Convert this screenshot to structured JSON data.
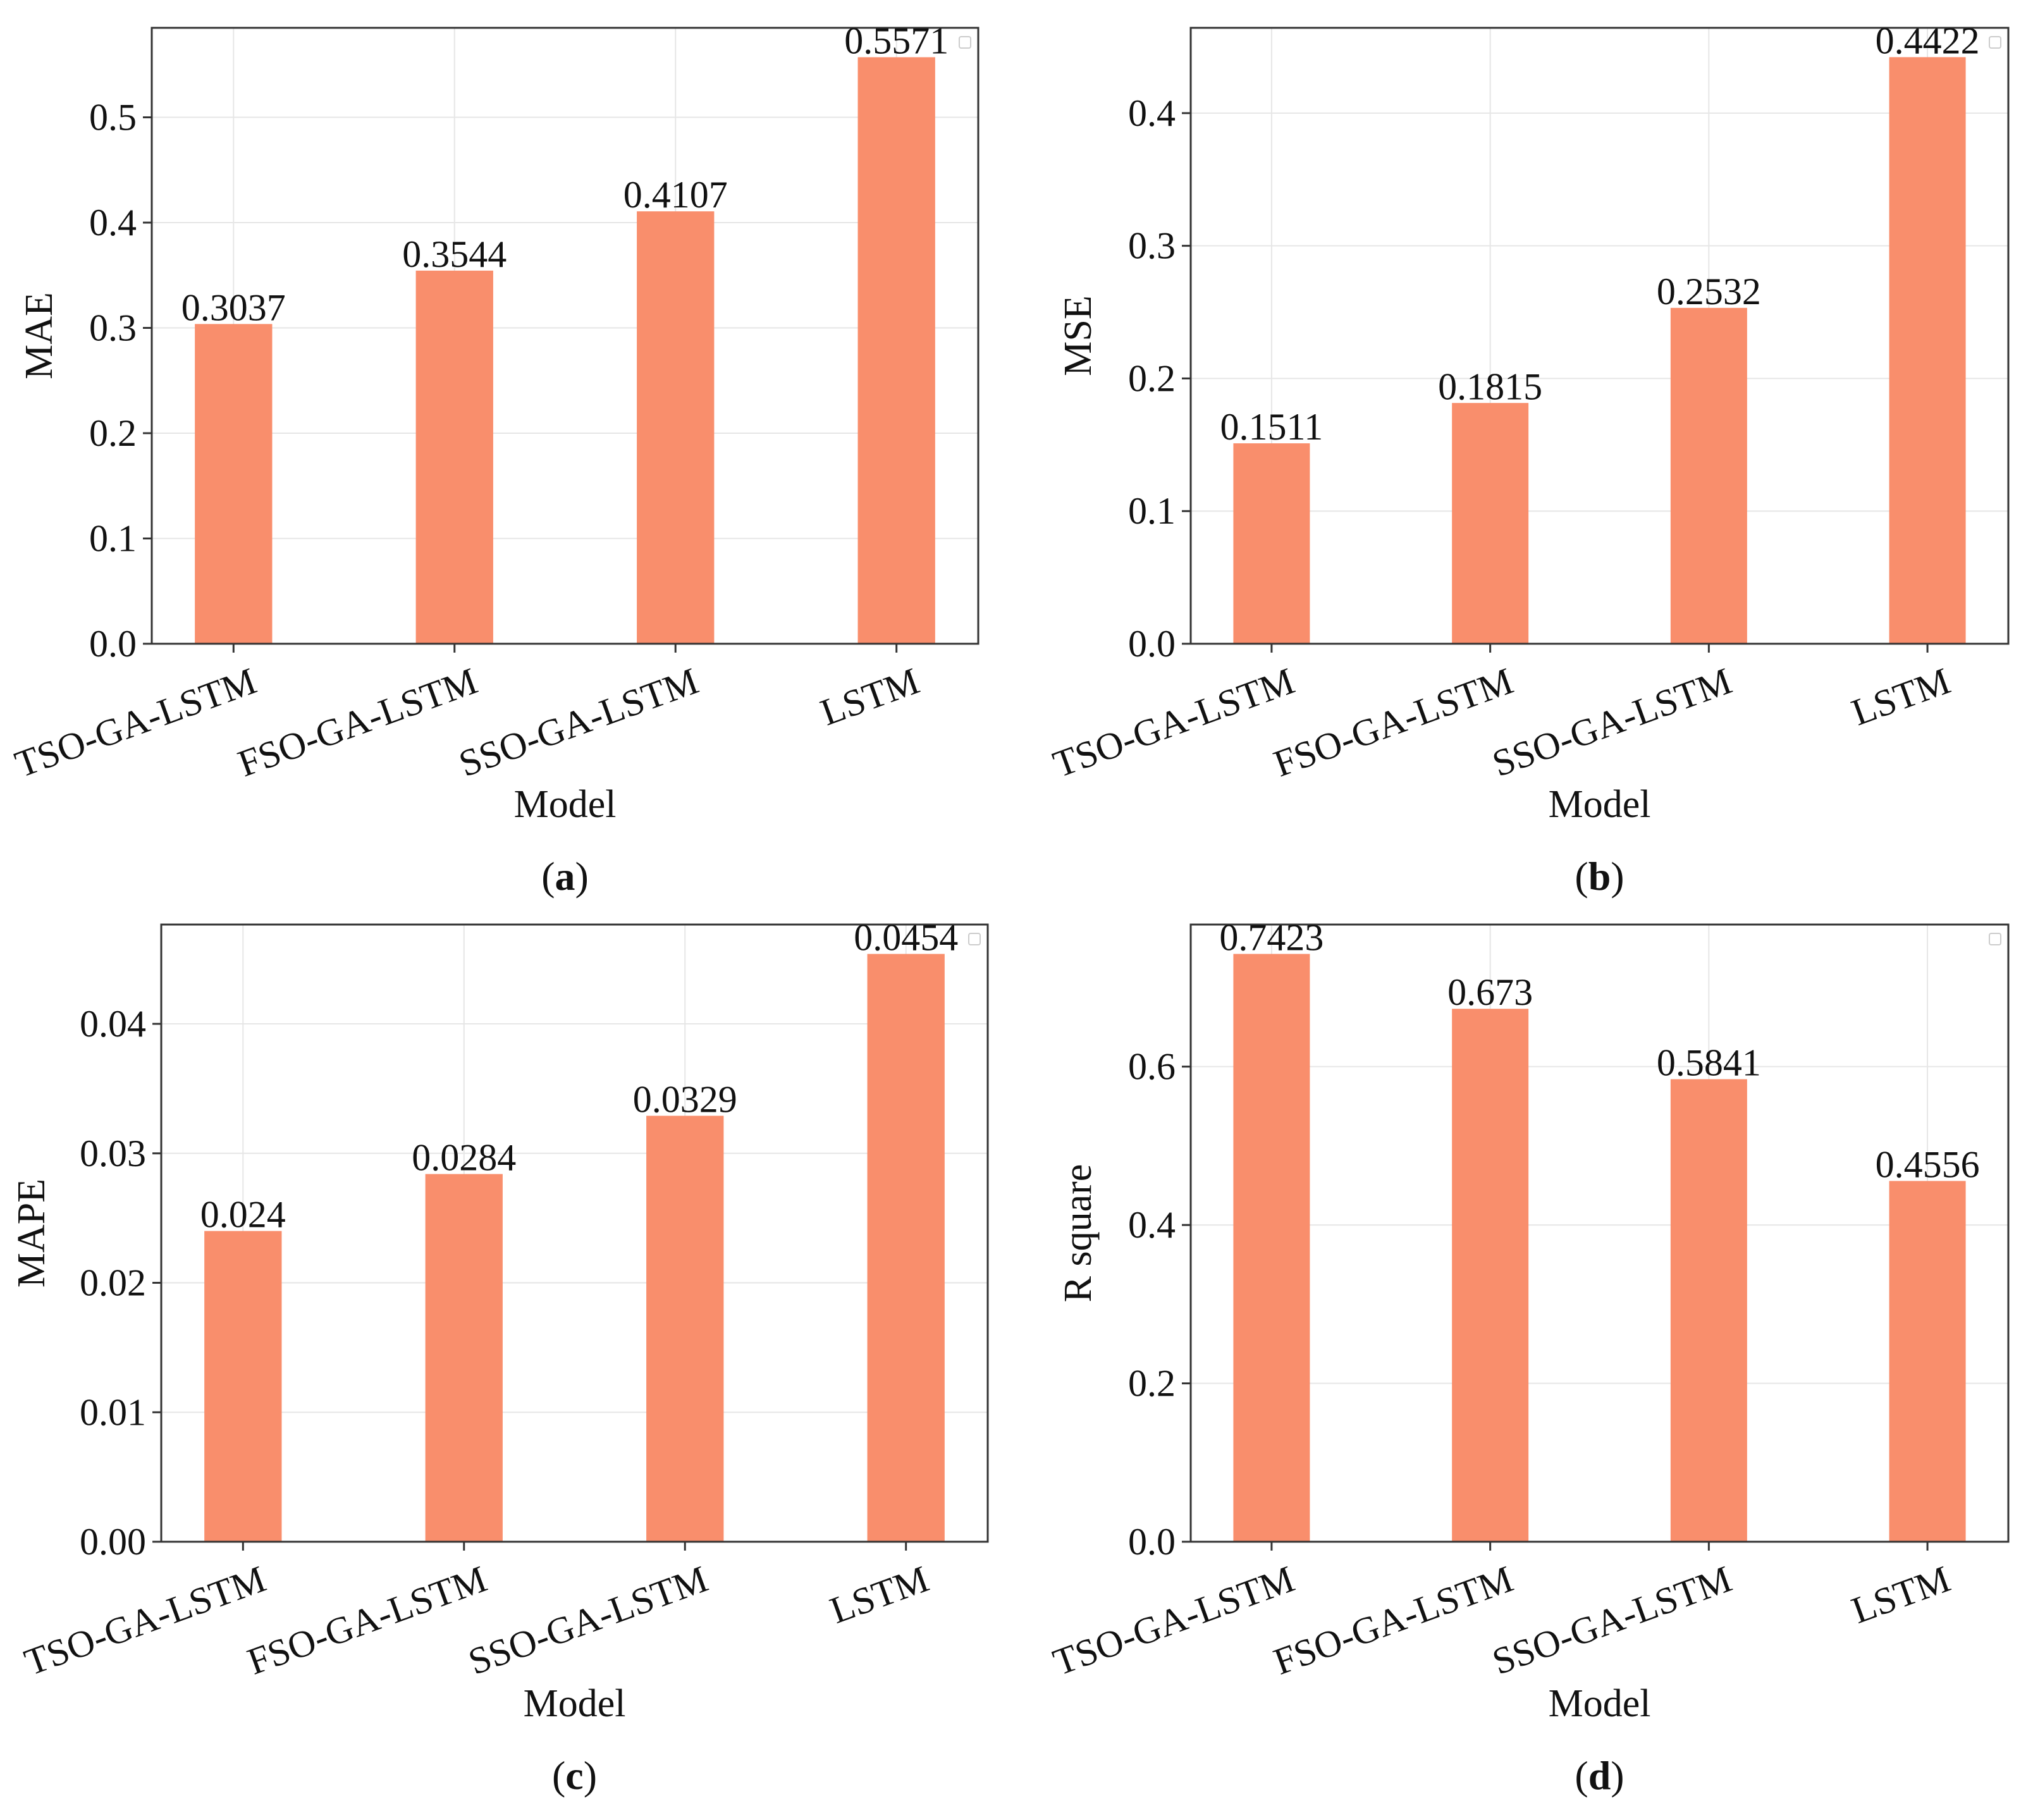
{
  "figure": {
    "bar_color": "#f98e6c",
    "grid_color": "#e6e6e6",
    "axis_color": "#333333"
  },
  "chart_data": [
    {
      "id": "a",
      "type": "bar",
      "panel_label": {
        "open": "(",
        "letter": "a",
        "close": ")"
      },
      "categories": [
        "TSO-GA-LSTM",
        "FSO-GA-LSTM",
        "SSO-GA-LSTM",
        "LSTM"
      ],
      "values": [
        0.3037,
        0.3544,
        0.4107,
        0.5571
      ],
      "value_labels": [
        "0.3037",
        "0.3544",
        "0.4107",
        "0.5571"
      ],
      "xlabel": "Model",
      "ylabel": "MAE",
      "ylim": [
        0,
        0.585
      ],
      "yticks": [
        0.0,
        0.1,
        0.2,
        0.3,
        0.4,
        0.5
      ],
      "ytick_labels": [
        "0.0",
        "0.1",
        "0.2",
        "0.3",
        "0.4",
        "0.5"
      ],
      "grid": true,
      "legend": "top-right (empty)"
    },
    {
      "id": "b",
      "type": "bar",
      "panel_label": {
        "open": "(",
        "letter": "b",
        "close": ")"
      },
      "categories": [
        "TSO-GA-LSTM",
        "FSO-GA-LSTM",
        "SSO-GA-LSTM",
        "LSTM"
      ],
      "values": [
        0.1511,
        0.1815,
        0.2532,
        0.4422
      ],
      "value_labels": [
        "0.1511",
        "0.1815",
        "0.2532",
        "0.4422"
      ],
      "xlabel": "Model",
      "ylabel": "MSE",
      "ylim": [
        0,
        0.4643
      ],
      "yticks": [
        0.0,
        0.1,
        0.2,
        0.3,
        0.4
      ],
      "ytick_labels": [
        "0.0",
        "0.1",
        "0.2",
        "0.3",
        "0.4"
      ],
      "grid": true,
      "legend": "top-right (empty)"
    },
    {
      "id": "c",
      "type": "bar",
      "panel_label": {
        "open": "(",
        "letter": "c",
        "close": ")"
      },
      "categories": [
        "TSO-GA-LSTM",
        "FSO-GA-LSTM",
        "SSO-GA-LSTM",
        "LSTM"
      ],
      "values": [
        0.024,
        0.0284,
        0.0329,
        0.0454
      ],
      "value_labels": [
        "0.024",
        "0.0284",
        "0.0329",
        "0.0454"
      ],
      "xlabel": "Model",
      "ylabel": "MAPE",
      "ylim": [
        0,
        0.04767
      ],
      "yticks": [
        0.0,
        0.01,
        0.02,
        0.03,
        0.04
      ],
      "ytick_labels": [
        "0.00",
        "0.01",
        "0.02",
        "0.03",
        "0.04"
      ],
      "grid": true,
      "legend": "top-right (empty)"
    },
    {
      "id": "d",
      "type": "bar",
      "panel_label": {
        "open": "(",
        "letter": "d",
        "close": ")"
      },
      "categories": [
        "TSO-GA-LSTM",
        "FSO-GA-LSTM",
        "SSO-GA-LSTM",
        "LSTM"
      ],
      "values": [
        0.7423,
        0.673,
        0.5841,
        0.4556
      ],
      "value_labels": [
        "0.7423",
        "0.673",
        "0.5841",
        "0.4556"
      ],
      "xlabel": "Model",
      "ylabel": "R square",
      "ylim": [
        0,
        0.7794
      ],
      "yticks": [
        0.0,
        0.2,
        0.4,
        0.6
      ],
      "ytick_labels": [
        "0.0",
        "0.2",
        "0.4",
        "0.6"
      ],
      "grid": true,
      "legend": "top-right (empty)"
    }
  ]
}
